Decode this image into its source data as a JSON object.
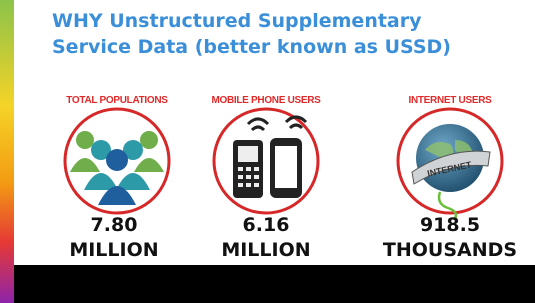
{
  "header": {
    "title_lines": [
      "WHY Unstructured Supplementary",
      "Service Data (better known as USSD)"
    ]
  },
  "stats": [
    {
      "label": "TOTAL POPULATIONS",
      "value": "7.80",
      "unit": "MILLION"
    },
    {
      "label": "MOBILE PHONE USERS",
      "value": "6.16",
      "unit": "MILLION"
    },
    {
      "label": "INTERNET USERS",
      "value": "918.5",
      "unit": "THOUSANDS",
      "icon_text": "INTERNET"
    }
  ]
}
